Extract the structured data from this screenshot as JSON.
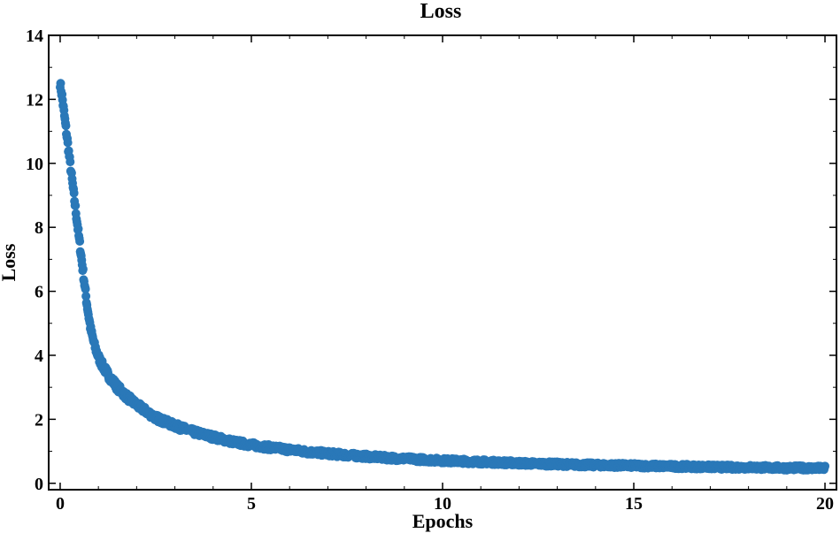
{
  "chart_data": {
    "type": "scatter",
    "title": "Loss",
    "xlabel": "Epochs",
    "ylabel": "Loss",
    "xlim": [
      -0.3,
      20.3
    ],
    "ylim": [
      -0.2,
      14
    ],
    "xticks": [
      0,
      5,
      10,
      15,
      20
    ],
    "yticks": [
      0,
      2,
      4,
      6,
      8,
      10,
      12,
      14
    ],
    "grid": false,
    "legend": "none",
    "marker_color": "#2a78b8",
    "series": [
      {
        "points": [
          [
            0.0,
            12.5
          ],
          [
            0.05,
            12.1
          ],
          [
            0.1,
            11.6
          ],
          [
            0.15,
            11.1
          ],
          [
            0.2,
            10.6
          ],
          [
            0.25,
            10.1
          ],
          [
            0.3,
            9.6
          ],
          [
            0.35,
            9.1
          ],
          [
            0.4,
            8.6
          ],
          [
            0.45,
            8.1
          ],
          [
            0.5,
            7.6
          ],
          [
            0.55,
            7.1
          ],
          [
            0.6,
            6.6
          ],
          [
            0.65,
            6.1
          ],
          [
            0.7,
            5.6
          ],
          [
            0.75,
            5.2
          ],
          [
            0.8,
            4.8
          ],
          [
            0.9,
            4.3
          ],
          [
            1.0,
            3.95
          ],
          [
            1.1,
            3.7
          ],
          [
            1.25,
            3.4
          ],
          [
            1.5,
            3.0
          ],
          [
            1.75,
            2.7
          ],
          [
            2.0,
            2.45
          ],
          [
            2.25,
            2.25
          ],
          [
            2.5,
            2.05
          ],
          [
            3.0,
            1.8
          ],
          [
            3.5,
            1.6
          ],
          [
            4.0,
            1.45
          ],
          [
            4.5,
            1.3
          ],
          [
            5.0,
            1.2
          ],
          [
            5.5,
            1.12
          ],
          [
            6.0,
            1.05
          ],
          [
            6.5,
            0.98
          ],
          [
            7.0,
            0.93
          ],
          [
            7.5,
            0.88
          ],
          [
            8.0,
            0.84
          ],
          [
            8.5,
            0.8
          ],
          [
            9.0,
            0.77
          ],
          [
            9.5,
            0.74
          ],
          [
            10.0,
            0.71
          ],
          [
            10.5,
            0.69
          ],
          [
            11.0,
            0.67
          ],
          [
            11.5,
            0.65
          ],
          [
            12.0,
            0.63
          ],
          [
            12.5,
            0.61
          ],
          [
            13.0,
            0.6
          ],
          [
            13.5,
            0.58
          ],
          [
            14.0,
            0.57
          ],
          [
            14.5,
            0.56
          ],
          [
            15.0,
            0.55
          ],
          [
            15.5,
            0.54
          ],
          [
            16.0,
            0.53
          ],
          [
            16.5,
            0.52
          ],
          [
            17.0,
            0.51
          ],
          [
            17.5,
            0.5
          ],
          [
            18.0,
            0.5
          ],
          [
            18.5,
            0.49
          ],
          [
            19.0,
            0.48
          ],
          [
            19.5,
            0.48
          ],
          [
            20.0,
            0.47
          ]
        ]
      }
    ]
  }
}
